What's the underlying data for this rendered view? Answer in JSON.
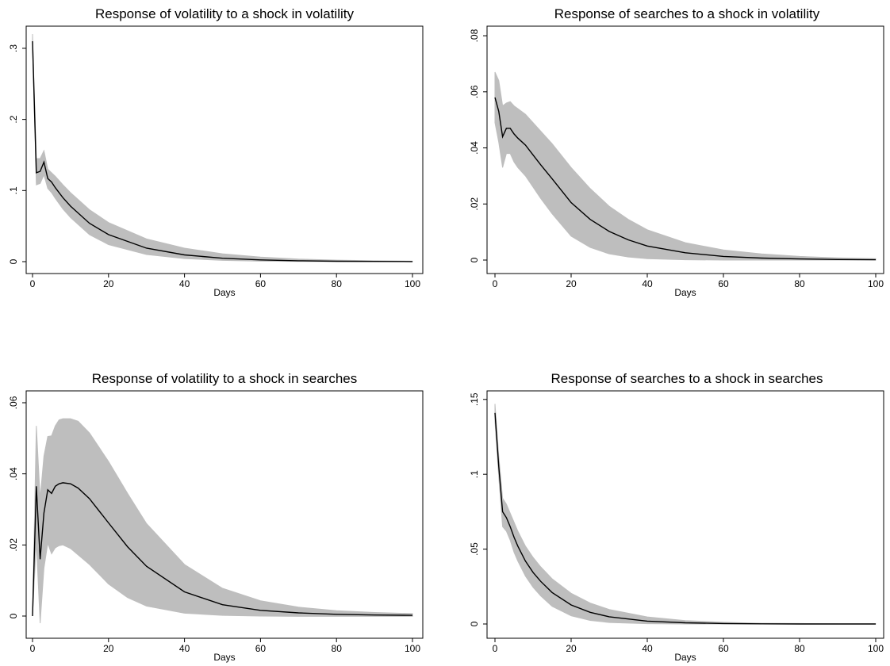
{
  "figure": {
    "background": "#ffffff",
    "band_color": "#bebebe",
    "line_color": "#000000"
  },
  "chart_data": [
    {
      "type": "line",
      "title": "Response of volatility to a shock in volatility",
      "xlabel": "Days",
      "ylabel": "",
      "xlim": [
        0,
        100
      ],
      "ylim": [
        0,
        0.32
      ],
      "x_ticks": [
        0,
        20,
        40,
        60,
        80,
        100
      ],
      "x_tick_labels": [
        "0",
        "20",
        "40",
        "60",
        "80",
        "100"
      ],
      "y_ticks": [
        0,
        0.1,
        0.2,
        0.3
      ],
      "y_tick_labels": [
        "0",
        ".1",
        ".2",
        ".3"
      ],
      "grid": false,
      "legend": "none",
      "x": [
        0,
        1,
        2,
        3,
        4,
        5,
        6,
        8,
        10,
        15,
        20,
        30,
        40,
        50,
        60,
        70,
        80,
        90,
        100
      ],
      "series": [
        {
          "role": "estimate",
          "values": [
            0.31,
            0.125,
            0.127,
            0.14,
            0.117,
            0.112,
            0.104,
            0.09,
            0.078,
            0.054,
            0.038,
            0.019,
            0.0095,
            0.0048,
            0.0024,
            0.0012,
            0.0006,
            0.0003,
            0.0001
          ]
        },
        {
          "role": "upper",
          "values": [
            0.32,
            0.145,
            0.145,
            0.156,
            0.13,
            0.125,
            0.12,
            0.108,
            0.097,
            0.073,
            0.055,
            0.032,
            0.019,
            0.011,
            0.0065,
            0.0037,
            0.0021,
            0.0012,
            0.0007
          ]
        },
        {
          "role": "lower",
          "values": [
            0.3,
            0.108,
            0.11,
            0.122,
            0.103,
            0.097,
            0.089,
            0.074,
            0.062,
            0.038,
            0.024,
            0.01,
            0.0043,
            0.0018,
            0.0007,
            0.0003,
            0.0001,
            0.0,
            0.0
          ]
        }
      ]
    },
    {
      "type": "line",
      "title": "Response of searches to a shock in volatility",
      "xlabel": "Days",
      "ylabel": "",
      "xlim": [
        0,
        100
      ],
      "ylim": [
        0,
        0.082
      ],
      "x_ticks": [
        0,
        20,
        40,
        60,
        80,
        100
      ],
      "x_tick_labels": [
        "0",
        "20",
        "40",
        "60",
        "80",
        "100"
      ],
      "y_ticks": [
        0,
        0.02,
        0.04,
        0.06,
        0.08
      ],
      "y_tick_labels": [
        "0",
        ".02",
        ".04",
        ".06",
        ".08"
      ],
      "grid": false,
      "legend": "none",
      "x": [
        0,
        1,
        2,
        3,
        4,
        5,
        6,
        8,
        10,
        12,
        15,
        20,
        25,
        30,
        35,
        40,
        50,
        60,
        70,
        80,
        90,
        100
      ],
      "series": [
        {
          "role": "estimate",
          "values": [
            0.058,
            0.053,
            0.044,
            0.047,
            0.047,
            0.045,
            0.0435,
            0.041,
            0.0375,
            0.034,
            0.029,
            0.0205,
            0.0145,
            0.0102,
            0.0072,
            0.005,
            0.0026,
            0.0013,
            0.0007,
            0.0004,
            0.0002,
            0.0001
          ]
        },
        {
          "role": "upper",
          "values": [
            0.067,
            0.064,
            0.055,
            0.056,
            0.0565,
            0.055,
            0.054,
            0.052,
            0.049,
            0.046,
            0.0415,
            0.033,
            0.0255,
            0.0192,
            0.0145,
            0.0108,
            0.0062,
            0.0036,
            0.0022,
            0.0013,
            0.0008,
            0.0005
          ]
        },
        {
          "role": "lower",
          "values": [
            0.049,
            0.042,
            0.033,
            0.038,
            0.038,
            0.035,
            0.033,
            0.03,
            0.026,
            0.022,
            0.0165,
            0.0085,
            0.0045,
            0.0022,
            0.0011,
            0.0005,
            0.0001,
            0.0,
            0.0,
            0.0,
            0.0,
            0.0
          ]
        }
      ]
    },
    {
      "type": "line",
      "title": "Response of volatility to a shock in searches",
      "xlabel": "Days",
      "ylabel": "",
      "xlim": [
        0,
        100
      ],
      "ylim": [
        0,
        0.062
      ],
      "x_ticks": [
        0,
        20,
        40,
        60,
        80,
        100
      ],
      "x_tick_labels": [
        "0",
        "20",
        "40",
        "60",
        "80",
        "100"
      ],
      "y_ticks": [
        0,
        0.02,
        0.04,
        0.06
      ],
      "y_tick_labels": [
        "0",
        ".02",
        ".04",
        ".06"
      ],
      "grid": false,
      "legend": "none",
      "x": [
        0,
        1,
        2,
        3,
        4,
        5,
        6,
        7,
        8,
        10,
        12,
        15,
        20,
        25,
        30,
        40,
        50,
        60,
        70,
        80,
        90,
        100
      ],
      "series": [
        {
          "role": "estimate",
          "values": [
            0.0,
            0.0365,
            0.016,
            0.029,
            0.0355,
            0.0345,
            0.0365,
            0.0372,
            0.0375,
            0.0372,
            0.036,
            0.033,
            0.0262,
            0.0195,
            0.014,
            0.0068,
            0.0032,
            0.0016,
            0.0009,
            0.0005,
            0.0003,
            0.0002
          ]
        },
        {
          "role": "upper",
          "values": [
            0.0,
            0.0535,
            0.033,
            0.045,
            0.0505,
            0.0507,
            0.0535,
            0.0552,
            0.0555,
            0.0555,
            0.0548,
            0.0515,
            0.0435,
            0.0345,
            0.026,
            0.0145,
            0.0078,
            0.0043,
            0.0025,
            0.0015,
            0.001,
            0.0007
          ]
        },
        {
          "role": "lower",
          "values": [
            0.0,
            0.021,
            -0.002,
            0.0135,
            0.0205,
            0.0175,
            0.0192,
            0.0198,
            0.02,
            0.019,
            0.0172,
            0.0145,
            0.009,
            0.0052,
            0.0028,
            0.0008,
            0.0002,
            0.0,
            -0.0001,
            -0.0001,
            -0.0001,
            -0.0001
          ]
        }
      ]
    },
    {
      "type": "line",
      "title": "Response of searches to a shock in searches",
      "xlabel": "Days",
      "ylabel": "",
      "xlim": [
        0,
        100
      ],
      "ylim": [
        0,
        0.152
      ],
      "x_ticks": [
        0,
        20,
        40,
        60,
        80,
        100
      ],
      "x_tick_labels": [
        "0",
        "20",
        "40",
        "60",
        "80",
        "100"
      ],
      "y_ticks": [
        0,
        0.05,
        0.1,
        0.15
      ],
      "y_tick_labels": [
        "0",
        ".05",
        ".1",
        ".15"
      ],
      "grid": false,
      "legend": "none",
      "x": [
        0,
        1,
        2,
        3,
        4,
        5,
        6,
        8,
        10,
        12,
        15,
        20,
        25,
        30,
        40,
        50,
        60,
        70,
        80,
        90,
        100
      ],
      "series": [
        {
          "role": "estimate",
          "values": [
            0.141,
            0.105,
            0.075,
            0.071,
            0.065,
            0.058,
            0.052,
            0.042,
            0.0345,
            0.0285,
            0.021,
            0.0127,
            0.0078,
            0.0048,
            0.0019,
            0.0008,
            0.0003,
            0.0001,
            0.0,
            0.0,
            0.0
          ]
        },
        {
          "role": "upper",
          "values": [
            0.147,
            0.112,
            0.084,
            0.08,
            0.074,
            0.068,
            0.062,
            0.052,
            0.0445,
            0.0382,
            0.0302,
            0.0205,
            0.014,
            0.0097,
            0.0047,
            0.0023,
            0.0011,
            0.0005,
            0.0003,
            0.0001,
            0.0001
          ]
        },
        {
          "role": "lower",
          "values": [
            0.135,
            0.098,
            0.065,
            0.062,
            0.056,
            0.048,
            0.042,
            0.032,
            0.0245,
            0.0188,
            0.0118,
            0.0055,
            0.0024,
            0.001,
            0.0002,
            0.0,
            0.0,
            0.0,
            0.0,
            0.0,
            0.0
          ]
        }
      ]
    }
  ]
}
